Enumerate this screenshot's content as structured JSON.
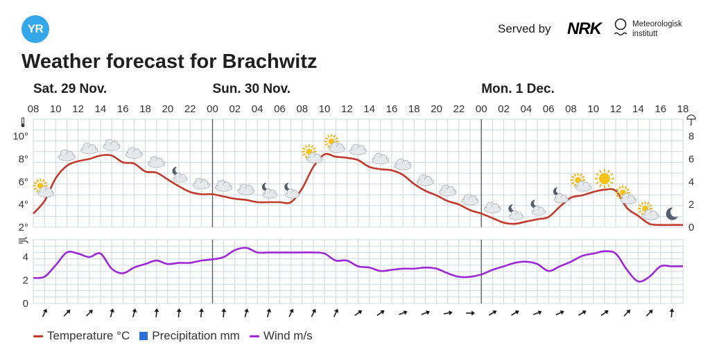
{
  "header": {
    "logo_text": "YR",
    "served_by": "Served by",
    "nrk_logo": "NRK",
    "met_line1": "Meteorologisk",
    "met_line2": "institutt",
    "met_icon": "met-logo-icon"
  },
  "title": "Weather forecast for Brachwitz",
  "colors": {
    "temperature": "#c0392b",
    "precipitation": "#2a6fdb",
    "wind": "#9b27d6",
    "grid": "#cfd6dd",
    "separator": "#555555"
  },
  "chart_data": [
    {
      "type": "line",
      "title": "",
      "days": [
        {
          "label": "Sat. 29 Nov.",
          "start_hour": 8
        },
        {
          "label": "Sun. 30 Nov.",
          "start_hour": 24
        },
        {
          "label": "Mon. 1 Dec.",
          "start_hour": 48
        }
      ],
      "x_tick_labels": [
        "08",
        "10",
        "12",
        "14",
        "16",
        "18",
        "20",
        "22",
        "00",
        "02",
        "04",
        "06",
        "08",
        "10",
        "12",
        "14",
        "16",
        "18",
        "20",
        "22",
        "00",
        "02",
        "04",
        "06",
        "08",
        "10",
        "12",
        "14",
        "16",
        "18"
      ],
      "x_range_hours": [
        8,
        66
      ],
      "yleft_ticks": [
        "2°",
        "4°",
        "6°",
        "8°",
        "10°"
      ],
      "yleft_range": [
        2,
        11.5
      ],
      "yright_ticks": [
        "0",
        "2",
        "4",
        "6",
        "8"
      ],
      "series": [
        {
          "name": "Temperature °C",
          "x": [
            8,
            9,
            10,
            11,
            12,
            13,
            14,
            15,
            16,
            17,
            18,
            19,
            20,
            21,
            22,
            23,
            24,
            25,
            26,
            27,
            28,
            29,
            30,
            31,
            32,
            33,
            34,
            35,
            36,
            37,
            38,
            39,
            40,
            41,
            42,
            43,
            44,
            45,
            46,
            47,
            48,
            49,
            50,
            51,
            52,
            53,
            54,
            55,
            56,
            57,
            58,
            59,
            60,
            61,
            62,
            63,
            64,
            65,
            66
          ],
          "values": [
            3.2,
            4.3,
            6.3,
            7.4,
            7.8,
            8.0,
            8.3,
            8.3,
            7.7,
            7.6,
            6.9,
            6.8,
            6.2,
            5.6,
            5.1,
            4.9,
            4.9,
            4.7,
            4.5,
            4.4,
            4.2,
            4.2,
            4.2,
            4.2,
            5.4,
            7.3,
            8.4,
            8.2,
            8.1,
            7.9,
            7.3,
            7.1,
            7.0,
            6.6,
            5.8,
            5.2,
            4.8,
            4.3,
            4.0,
            3.5,
            3.2,
            2.8,
            2.4,
            2.3,
            2.5,
            2.7,
            2.9,
            3.8,
            4.6,
            4.8,
            5.1,
            5.3,
            5.2,
            3.7,
            3.0,
            2.3,
            2.2,
            2.2,
            2.2
          ]
        },
        {
          "name": "Precipitation mm",
          "values": []
        },
        {
          "name": "Wind m/s",
          "x": [
            8,
            9,
            10,
            11,
            12,
            13,
            14,
            15,
            16,
            17,
            18,
            19,
            20,
            21,
            22,
            23,
            24,
            25,
            26,
            27,
            28,
            29,
            30,
            31,
            32,
            33,
            34,
            35,
            36,
            37,
            38,
            39,
            40,
            41,
            42,
            43,
            44,
            45,
            46,
            47,
            48,
            49,
            50,
            51,
            52,
            53,
            54,
            55,
            56,
            57,
            58,
            59,
            60,
            61,
            62,
            63,
            64,
            65,
            66
          ],
          "values": [
            2.2,
            2.3,
            3.3,
            4.4,
            4.3,
            4.0,
            4.3,
            3.0,
            2.6,
            3.1,
            3.4,
            3.7,
            3.4,
            3.5,
            3.5,
            3.7,
            3.8,
            4.0,
            4.6,
            4.8,
            4.4,
            4.4,
            4.4,
            4.4,
            4.4,
            4.4,
            4.3,
            3.7,
            3.7,
            3.2,
            3.1,
            2.8,
            2.9,
            3.0,
            3.0,
            3.1,
            3.0,
            2.6,
            2.3,
            2.3,
            2.5,
            2.9,
            3.2,
            3.5,
            3.6,
            3.4,
            2.8,
            3.2,
            3.6,
            4.1,
            4.3,
            4.5,
            4.3,
            2.9,
            1.9,
            2.3,
            3.2,
            3.2,
            3.2
          ]
        }
      ],
      "wind_ylim": [
        0,
        5.5
      ],
      "wind_ticks": [
        "0",
        "2",
        "4"
      ],
      "weather_symbols": [
        {
          "hour": 9,
          "icon": "partly-cloudy-day"
        },
        {
          "hour": 11,
          "icon": "cloudy"
        },
        {
          "hour": 13,
          "icon": "cloudy"
        },
        {
          "hour": 15,
          "icon": "cloudy"
        },
        {
          "hour": 17,
          "icon": "cloudy"
        },
        {
          "hour": 19,
          "icon": "cloudy"
        },
        {
          "hour": 21,
          "icon": "partly-cloudy-night"
        },
        {
          "hour": 23,
          "icon": "cloudy"
        },
        {
          "hour": 25,
          "icon": "cloudy"
        },
        {
          "hour": 27,
          "icon": "cloudy"
        },
        {
          "hour": 29,
          "icon": "partly-cloudy-night"
        },
        {
          "hour": 31,
          "icon": "partly-cloudy-night"
        },
        {
          "hour": 33,
          "icon": "partly-cloudy-day"
        },
        {
          "hour": 35,
          "icon": "partly-cloudy-day"
        },
        {
          "hour": 37,
          "icon": "cloudy"
        },
        {
          "hour": 39,
          "icon": "cloudy"
        },
        {
          "hour": 41,
          "icon": "cloudy"
        },
        {
          "hour": 43,
          "icon": "cloudy"
        },
        {
          "hour": 45,
          "icon": "cloudy"
        },
        {
          "hour": 47,
          "icon": "cloudy"
        },
        {
          "hour": 49,
          "icon": "cloudy"
        },
        {
          "hour": 51,
          "icon": "partly-cloudy-night"
        },
        {
          "hour": 53,
          "icon": "partly-cloudy-night"
        },
        {
          "hour": 55,
          "icon": "partly-cloudy-night"
        },
        {
          "hour": 57,
          "icon": "partly-cloudy-day"
        },
        {
          "hour": 59,
          "icon": "clear-day"
        },
        {
          "hour": 61,
          "icon": "partly-cloudy-day"
        },
        {
          "hour": 63,
          "icon": "partly-cloudy-day"
        },
        {
          "hour": 65,
          "icon": "clear-night"
        }
      ],
      "wind_arrows": [
        {
          "hour": 9,
          "rotation": 25
        },
        {
          "hour": 11,
          "rotation": 45
        },
        {
          "hour": 13,
          "rotation": 45
        },
        {
          "hour": 15,
          "rotation": 15
        },
        {
          "hour": 17,
          "rotation": 15
        },
        {
          "hour": 19,
          "rotation": 5
        },
        {
          "hour": 21,
          "rotation": 5
        },
        {
          "hour": 23,
          "rotation": 5
        },
        {
          "hour": 25,
          "rotation": 5
        },
        {
          "hour": 27,
          "rotation": 15
        },
        {
          "hour": 29,
          "rotation": 15
        },
        {
          "hour": 31,
          "rotation": 25
        },
        {
          "hour": 33,
          "rotation": 25
        },
        {
          "hour": 35,
          "rotation": 25
        },
        {
          "hour": 37,
          "rotation": 55
        },
        {
          "hour": 39,
          "rotation": 55
        },
        {
          "hour": 41,
          "rotation": 70
        },
        {
          "hour": 43,
          "rotation": 70
        },
        {
          "hour": 45,
          "rotation": 80
        },
        {
          "hour": 47,
          "rotation": 90
        },
        {
          "hour": 49,
          "rotation": 60
        },
        {
          "hour": 51,
          "rotation": 60
        },
        {
          "hour": 53,
          "rotation": 70
        },
        {
          "hour": 55,
          "rotation": 65
        },
        {
          "hour": 57,
          "rotation": 60
        },
        {
          "hour": 59,
          "rotation": 55
        },
        {
          "hour": 61,
          "rotation": 45
        },
        {
          "hour": 63,
          "rotation": 45
        },
        {
          "hour": 65,
          "rotation": 5
        }
      ],
      "legend": [
        "Temperature °C",
        "Precipitation mm",
        "Wind m/s"
      ]
    }
  ]
}
